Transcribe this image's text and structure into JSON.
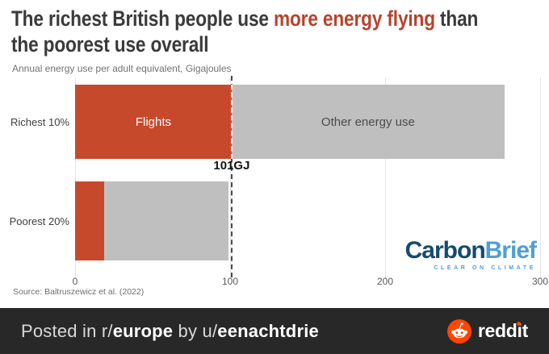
{
  "header": {
    "title_part1": "The richest British people use ",
    "title_accent": "more energy flying",
    "title_part2": " than",
    "title_line2": "the poorest use overall",
    "subtitle": "Annual energy use per adult equivalent, Gigajoules"
  },
  "chart_data": {
    "type": "bar",
    "orientation": "horizontal",
    "title": "The richest British people use more energy flying than the poorest use overall",
    "subtitle": "Annual energy use per adult equivalent, Gigajoules",
    "unit": "GJ",
    "categories": [
      "Richest 10%",
      "Poorest 20%"
    ],
    "series": [
      {
        "name": "Flights",
        "values": [
          101,
          19
        ],
        "color": "#c7492c"
      },
      {
        "name": "Other energy use",
        "values": [
          176,
          80
        ],
        "color": "#bfbfbf"
      }
    ],
    "totals": [
      277,
      99
    ],
    "xlim": [
      0,
      300
    ],
    "x_ticks": [
      0,
      100,
      200,
      300
    ],
    "reference_line": {
      "value": 101,
      "label": "101GJ"
    },
    "grid": true,
    "legend": "labels drawn inside bar segments",
    "source": "Source: Baltruszewicz et al. (2022)"
  },
  "source": "Source: Baltruszewicz et al. (2022)",
  "logo": {
    "part1": "Carbon",
    "part2": "Brief",
    "tagline": "CLEAR ON CLIMATE"
  },
  "footer": {
    "prefix": "Posted in r/",
    "subreddit": "europe",
    "middle": " by u/",
    "username": "eenachtdrie",
    "brand": "reddit"
  },
  "colors": {
    "accent_red": "#b8432c",
    "bar_red": "#c7492c",
    "bar_gray": "#bfbfbf",
    "carbon_navy": "#164a6e",
    "brief_blue": "#4e9fd6",
    "footer_bg": "#282828",
    "reddit_orange": "#ff4500"
  }
}
